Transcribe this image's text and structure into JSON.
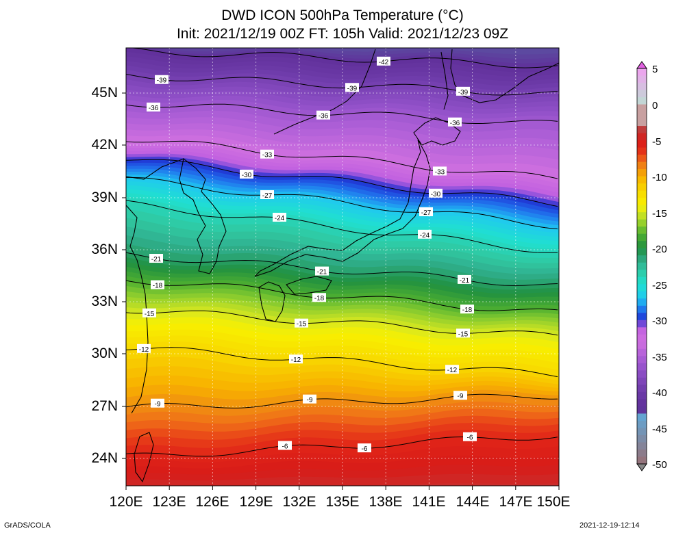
{
  "title": {
    "line1": "DWD ICON 500hPa Temperature (°C)",
    "line2": "Init: 2021/12/19 00Z  FT: 105h  Valid: 2021/12/23 09Z"
  },
  "lat_labels": [
    "45N",
    "42N",
    "39N",
    "36N",
    "33N",
    "30N",
    "27N",
    "24N"
  ],
  "lon_labels": [
    "120E",
    "123E",
    "126E",
    "129E",
    "132E",
    "135E",
    "138E",
    "141E",
    "144E",
    "147E",
    "150E"
  ],
  "colorbar": {
    "labels": [
      "5",
      "0",
      "-5",
      "-10",
      "-15",
      "-20",
      "-25",
      "-30",
      "-35",
      "-40",
      "-45",
      "-50"
    ],
    "colors": [
      "#f0a0f0",
      "#d8d8d8",
      "#e03020",
      "#f09010",
      "#f0e000",
      "#20a020",
      "#20d8b8",
      "#2070f0",
      "#8040e0",
      "#3c1480",
      "#60a8d8",
      "#909090"
    ]
  },
  "contour_labels": [
    "-42",
    "-39",
    "-36",
    "-33",
    "-30",
    "-27",
    "-24",
    "-21",
    "-18",
    "-15",
    "-12",
    "-9",
    "-6"
  ],
  "footer": {
    "left": "GrADS/COLA",
    "right": "2021-12-19-12:14"
  }
}
